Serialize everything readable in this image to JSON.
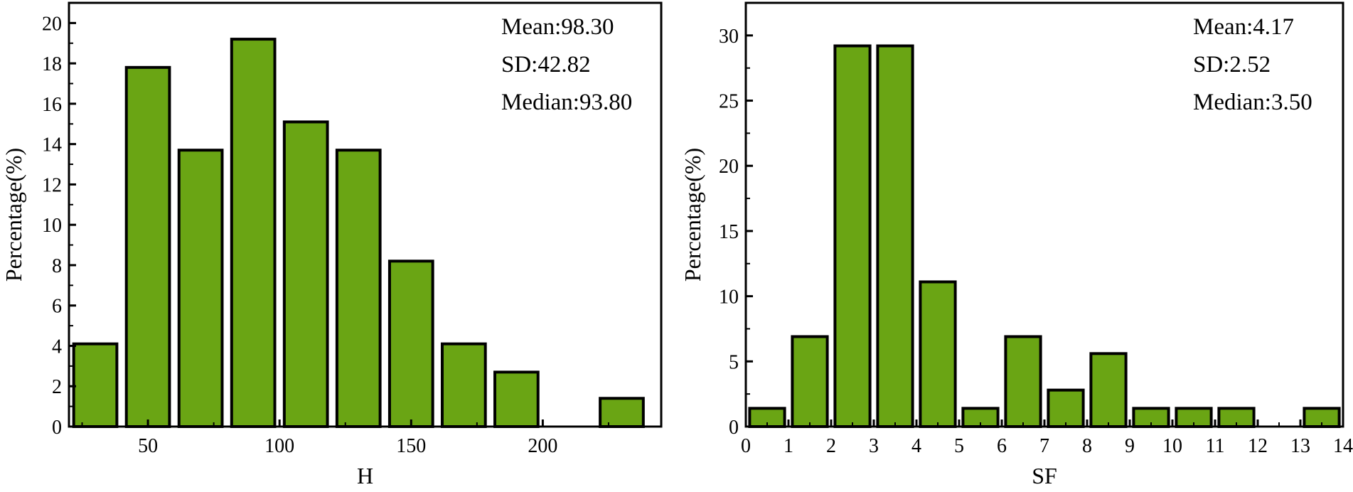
{
  "chart_data": [
    {
      "type": "bar",
      "xlabel": "H",
      "ylabel": "Percentage(%)",
      "xlim": [
        20,
        245
      ],
      "ylim": [
        0,
        21
      ],
      "x_ticks": [
        50,
        100,
        150,
        200
      ],
      "y_ticks": [
        0,
        2,
        4,
        6,
        8,
        10,
        12,
        14,
        16,
        18,
        20
      ],
      "bin_width": 20,
      "bins": [
        {
          "start": 20,
          "end": 40,
          "value": 4.1
        },
        {
          "start": 40,
          "end": 60,
          "value": 17.8
        },
        {
          "start": 60,
          "end": 80,
          "value": 13.7
        },
        {
          "start": 80,
          "end": 100,
          "value": 19.2
        },
        {
          "start": 100,
          "end": 120,
          "value": 15.1
        },
        {
          "start": 120,
          "end": 140,
          "value": 13.7
        },
        {
          "start": 140,
          "end": 160,
          "value": 8.2
        },
        {
          "start": 160,
          "end": 180,
          "value": 4.1
        },
        {
          "start": 180,
          "end": 200,
          "value": 2.7
        },
        {
          "start": 200,
          "end": 220,
          "value": 0
        },
        {
          "start": 220,
          "end": 240,
          "value": 1.4
        }
      ],
      "stats": [
        "Mean:98.30",
        "SD:42.82",
        "Median:93.80"
      ],
      "bar_color": "#6aa514",
      "grid": false
    },
    {
      "type": "bar",
      "xlabel": "SF",
      "ylabel": "Percentage(%)",
      "xlim": [
        0,
        14
      ],
      "ylim": [
        0,
        32.5
      ],
      "x_ticks": [
        0,
        1,
        2,
        3,
        4,
        5,
        6,
        7,
        8,
        9,
        10,
        11,
        12,
        13,
        14
      ],
      "y_ticks": [
        0,
        5,
        10,
        15,
        20,
        25,
        30
      ],
      "bin_width": 1,
      "bins": [
        {
          "start": 0,
          "end": 1,
          "value": 1.4
        },
        {
          "start": 1,
          "end": 2,
          "value": 6.9
        },
        {
          "start": 2,
          "end": 3,
          "value": 29.2
        },
        {
          "start": 3,
          "end": 4,
          "value": 29.2
        },
        {
          "start": 4,
          "end": 5,
          "value": 11.1
        },
        {
          "start": 5,
          "end": 6,
          "value": 1.4
        },
        {
          "start": 6,
          "end": 7,
          "value": 6.9
        },
        {
          "start": 7,
          "end": 8,
          "value": 2.8
        },
        {
          "start": 8,
          "end": 9,
          "value": 5.6
        },
        {
          "start": 9,
          "end": 10,
          "value": 1.4
        },
        {
          "start": 10,
          "end": 11,
          "value": 1.4
        },
        {
          "start": 11,
          "end": 12,
          "value": 1.4
        },
        {
          "start": 12,
          "end": 13,
          "value": 0
        },
        {
          "start": 13,
          "end": 14,
          "value": 1.4
        }
      ],
      "stats": [
        "Mean:4.17",
        "SD:2.52",
        "Median:3.50"
      ],
      "bar_color": "#6aa514",
      "grid": false
    }
  ]
}
